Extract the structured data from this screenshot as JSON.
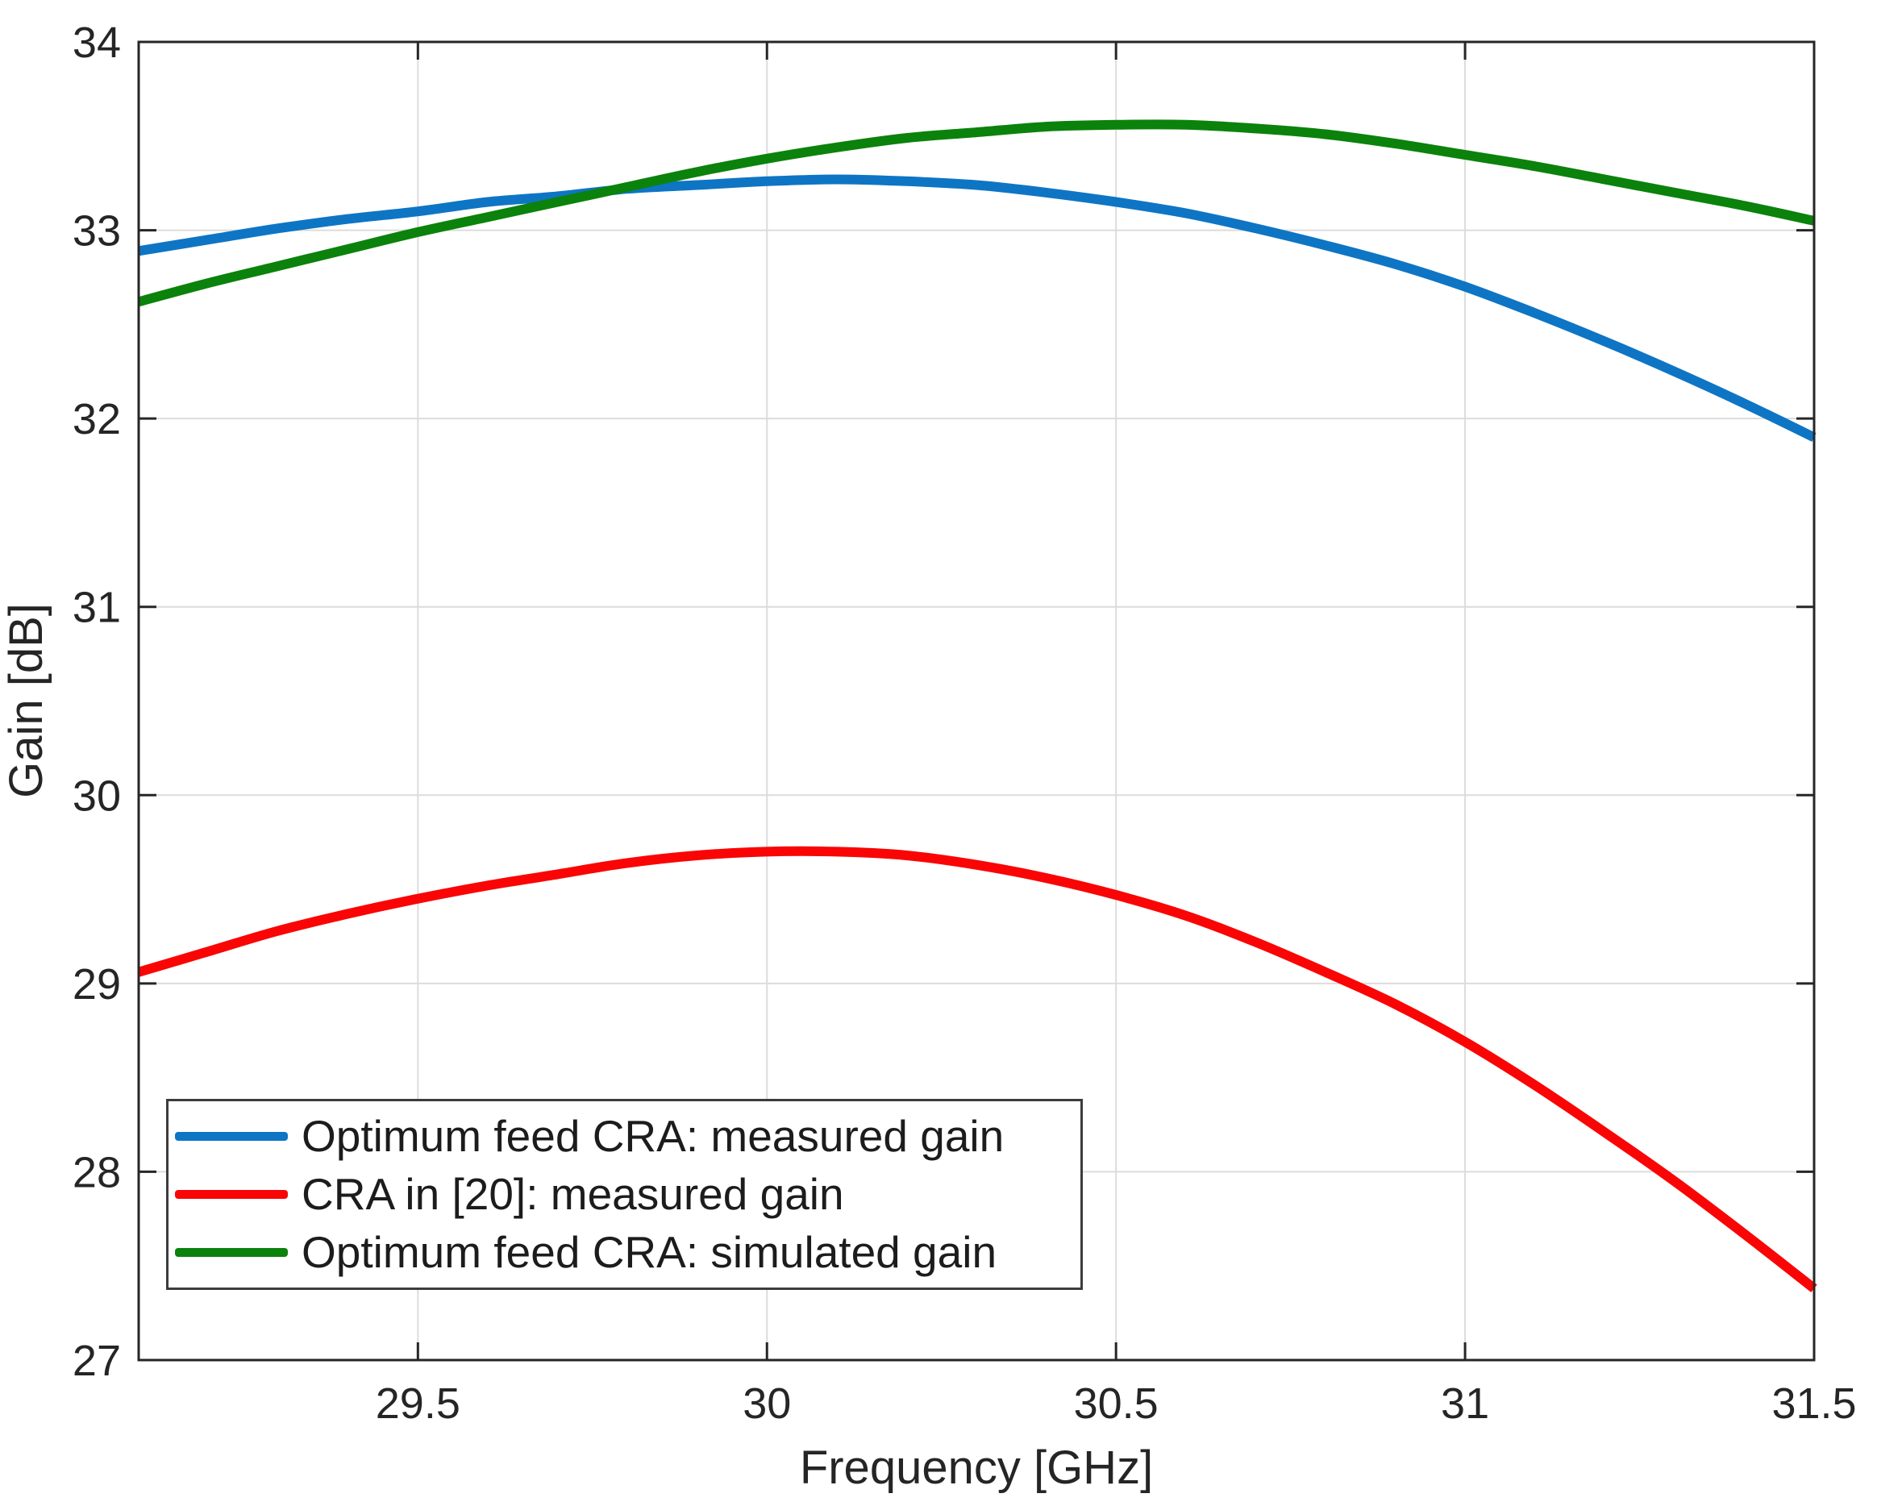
{
  "figure": {
    "background": "#ffffff",
    "axis_color": "#262626",
    "grid_color": "#dcdcdc",
    "tick_length": 22
  },
  "chart_data": {
    "type": "line",
    "title": "",
    "xlabel": "Frequency [GHz]",
    "ylabel": "Gain [dB]",
    "xlim": [
      29.1,
      31.5
    ],
    "ylim": [
      27,
      34
    ],
    "grid": true,
    "legend_position": "inside-bottom-left",
    "xticks": {
      "values": [
        29.5,
        30,
        30.5,
        31,
        31.5
      ],
      "labels": [
        "29.5",
        "30",
        "30.5",
        "31",
        "31.5"
      ]
    },
    "yticks": {
      "values": [
        27,
        28,
        29,
        30,
        31,
        32,
        33,
        34
      ],
      "labels": [
        "27",
        "28",
        "29",
        "30",
        "31",
        "32",
        "33",
        "34"
      ]
    },
    "x": [
      29.1,
      29.2,
      29.3,
      29.4,
      29.5,
      29.6,
      29.7,
      29.8,
      29.9,
      30.0,
      30.1,
      30.2,
      30.3,
      30.4,
      30.5,
      30.6,
      30.7,
      30.8,
      30.9,
      31.0,
      31.1,
      31.2,
      31.3,
      31.4,
      31.5
    ],
    "series": [
      {
        "name": "Optimum feed CRA: measured gain",
        "color": "#0e75c4",
        "values": [
          32.89,
          32.95,
          33.01,
          33.06,
          33.1,
          33.15,
          33.18,
          33.22,
          33.24,
          33.26,
          33.27,
          33.26,
          33.24,
          33.2,
          33.15,
          33.09,
          33.01,
          32.92,
          32.82,
          32.7,
          32.56,
          32.41,
          32.25,
          32.08,
          31.9
        ]
      },
      {
        "name": "CRA in [20]: measured gain",
        "color": "#fa0505",
        "values": [
          29.06,
          29.17,
          29.28,
          29.37,
          29.45,
          29.52,
          29.58,
          29.64,
          29.68,
          29.7,
          29.7,
          29.68,
          29.63,
          29.56,
          29.47,
          29.36,
          29.22,
          29.06,
          28.89,
          28.69,
          28.46,
          28.21,
          27.95,
          27.67,
          27.38
        ]
      },
      {
        "name": "Optimum feed CRA: simulated gain",
        "color": "#0b820b",
        "values": [
          32.62,
          32.72,
          32.81,
          32.9,
          32.99,
          33.07,
          33.15,
          33.23,
          33.31,
          33.38,
          33.44,
          33.49,
          33.52,
          33.55,
          33.56,
          33.56,
          33.54,
          33.51,
          33.46,
          33.4,
          33.34,
          33.27,
          33.2,
          33.13,
          33.05
        ]
      }
    ]
  }
}
